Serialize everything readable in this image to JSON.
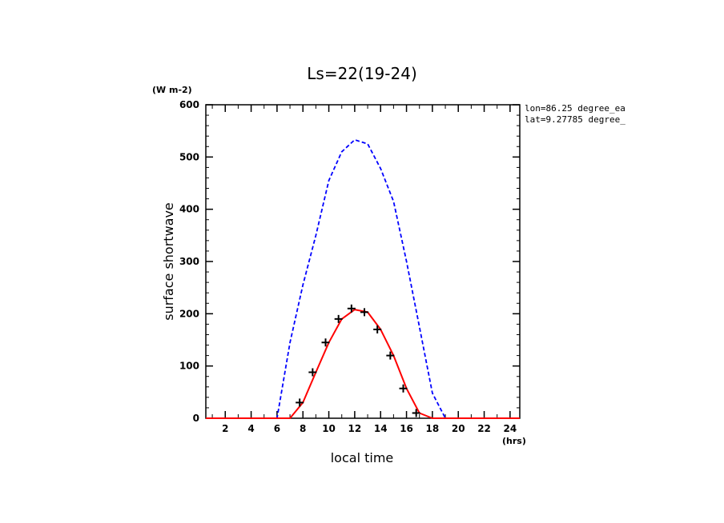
{
  "chart_data": {
    "type": "line",
    "title": "Ls=22(19-24)",
    "xlabel": "local time",
    "ylabel": "surface shortwave",
    "x_unit": "(hrs)",
    "y_unit": "(W m-2)",
    "xlim": [
      0.5,
      24.75
    ],
    "ylim": [
      0,
      600
    ],
    "x_ticks": [
      2,
      4,
      6,
      8,
      10,
      12,
      14,
      16,
      18,
      20,
      22,
      24
    ],
    "y_ticks": [
      0,
      100,
      200,
      300,
      400,
      500,
      600
    ],
    "side_notes": [
      "lon=86.25 degree_ea",
      "lat=9.27785 degree_"
    ],
    "grid": false,
    "series": [
      {
        "style": "dashed",
        "color": "#0000ff",
        "x": [
          0.5,
          1,
          2,
          3,
          4,
          5,
          6,
          7,
          8,
          9,
          10,
          11,
          12,
          13,
          14,
          15,
          16,
          17,
          18,
          19,
          20,
          21,
          22,
          23,
          24,
          24.75
        ],
        "y": [
          0,
          0,
          0,
          0,
          0,
          0,
          0,
          145,
          255,
          350,
          455,
          510,
          533,
          525,
          478,
          415,
          300,
          175,
          48,
          0,
          0,
          0,
          0,
          0,
          0,
          0
        ]
      },
      {
        "style": "solid",
        "color": "#ff0000",
        "x": [
          0.5,
          1,
          2,
          3,
          4,
          5,
          6,
          7,
          8,
          9,
          10,
          11,
          12,
          13,
          14,
          15,
          16,
          17,
          18,
          19,
          20,
          21,
          22,
          23,
          24,
          24.75
        ],
        "y": [
          0,
          0,
          0,
          0,
          0,
          0,
          0,
          0,
          30,
          88,
          145,
          190,
          208,
          203,
          170,
          120,
          57,
          10,
          0,
          0,
          0,
          0,
          0,
          0,
          0,
          0
        ]
      },
      {
        "style": "markers",
        "marker": "plus",
        "color": "#000000",
        "x": [
          7.75,
          8.75,
          9.75,
          10.75,
          11.75,
          12.75,
          13.75,
          14.75,
          15.75,
          16.75
        ],
        "y": [
          30,
          88,
          145,
          190,
          210,
          203,
          170,
          120,
          57,
          10
        ]
      }
    ]
  }
}
